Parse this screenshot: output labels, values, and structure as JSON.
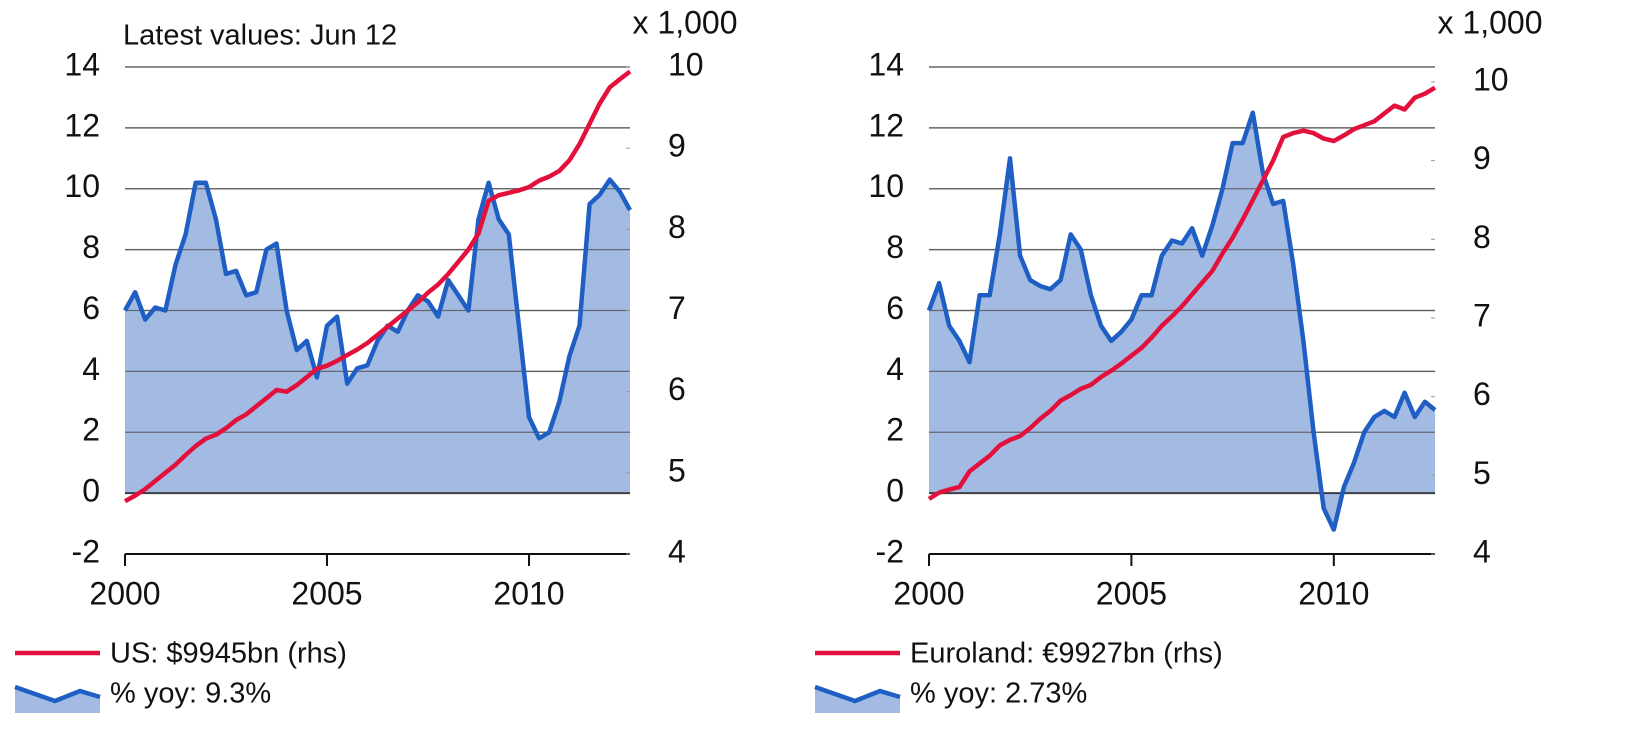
{
  "chart_data": [
    {
      "type": "line",
      "title": "Latest values: Jun 12",
      "y2label": "x 1,000",
      "x": [
        2000,
        2000.25,
        2000.5,
        2000.75,
        2001,
        2001.25,
        2001.5,
        2001.75,
        2002,
        2002.25,
        2002.5,
        2002.75,
        2003,
        2003.25,
        2003.5,
        2003.75,
        2004,
        2004.25,
        2004.5,
        2004.75,
        2005,
        2005.25,
        2005.5,
        2005.75,
        2006,
        2006.25,
        2006.5,
        2006.75,
        2007,
        2007.25,
        2007.5,
        2007.75,
        2008,
        2008.25,
        2008.5,
        2008.75,
        2009,
        2009.25,
        2009.5,
        2009.75,
        2010,
        2010.25,
        2010.5,
        2010.75,
        2011,
        2011.25,
        2011.5,
        2011.75,
        2012,
        2012.25,
        2012.5
      ],
      "series": [
        {
          "name": "US: $9945bn (rhs)",
          "color": "#e3103c",
          "axis": "y2",
          "style": "line",
          "values": [
            4.65,
            4.72,
            4.8,
            4.9,
            5.0,
            5.1,
            5.22,
            5.33,
            5.42,
            5.47,
            5.55,
            5.65,
            5.72,
            5.82,
            5.92,
            6.02,
            6.0,
            6.08,
            6.18,
            6.28,
            6.32,
            6.38,
            6.45,
            6.52,
            6.6,
            6.7,
            6.8,
            6.9,
            7.0,
            7.1,
            7.22,
            7.32,
            7.45,
            7.6,
            7.75,
            7.95,
            8.35,
            8.42,
            8.45,
            8.48,
            8.52,
            8.6,
            8.65,
            8.72,
            8.85,
            9.05,
            9.3,
            9.55,
            9.75,
            9.85,
            9.945
          ]
        },
        {
          "name": "% yoy: 9.3%",
          "color": "#1f5fc4",
          "fill": "#a3bbe3",
          "style": "area",
          "values": [
            6.0,
            6.6,
            5.7,
            6.1,
            6.0,
            7.5,
            8.5,
            10.2,
            10.2,
            9.0,
            7.2,
            7.3,
            6.5,
            6.6,
            8.0,
            8.2,
            6.0,
            4.7,
            5.0,
            3.8,
            5.5,
            5.8,
            3.6,
            4.1,
            4.2,
            5.0,
            5.5,
            5.3,
            6.0,
            6.5,
            6.3,
            5.8,
            7.0,
            6.5,
            6.0,
            9.0,
            10.2,
            9.0,
            8.5,
            5.5,
            2.5,
            1.8,
            2.0,
            3.0,
            4.5,
            5.5,
            9.5,
            9.8,
            10.3,
            9.9,
            9.3
          ]
        }
      ],
      "xlim": [
        2000,
        2012.5
      ],
      "xticks": [
        2000,
        2005,
        2010
      ],
      "ylim": [
        -2,
        14
      ],
      "yticks": [
        -2,
        0,
        2,
        4,
        6,
        8,
        10,
        12,
        14
      ],
      "y2lim": [
        4,
        10
      ],
      "y2ticks": [
        4,
        5,
        6,
        7,
        8,
        9,
        10
      ],
      "grid": true
    },
    {
      "type": "line",
      "y2label": "x 1,000",
      "x": [
        2000,
        2000.25,
        2000.5,
        2000.75,
        2001,
        2001.25,
        2001.5,
        2001.75,
        2002,
        2002.25,
        2002.5,
        2002.75,
        2003,
        2003.25,
        2003.5,
        2003.75,
        2004,
        2004.25,
        2004.5,
        2004.75,
        2005,
        2005.25,
        2005.5,
        2005.75,
        2006,
        2006.25,
        2006.5,
        2006.75,
        2007,
        2007.25,
        2007.5,
        2007.75,
        2008,
        2008.25,
        2008.5,
        2008.75,
        2009,
        2009.25,
        2009.5,
        2009.75,
        2010,
        2010.25,
        2010.5,
        2010.75,
        2011,
        2011.25,
        2011.5,
        2011.75,
        2012,
        2012.25,
        2012.5
      ],
      "series": [
        {
          "name": "Euroland: €9927bn (rhs)",
          "color": "#e3103c",
          "axis": "y2",
          "style": "line",
          "values": [
            4.7,
            4.78,
            4.82,
            4.85,
            5.05,
            5.15,
            5.25,
            5.38,
            5.45,
            5.5,
            5.6,
            5.72,
            5.82,
            5.95,
            6.02,
            6.1,
            6.15,
            6.25,
            6.33,
            6.42,
            6.52,
            6.62,
            6.75,
            6.9,
            7.02,
            7.15,
            7.3,
            7.45,
            7.6,
            7.82,
            8.02,
            8.25,
            8.5,
            8.75,
            9.0,
            9.3,
            9.35,
            9.38,
            9.35,
            9.28,
            9.25,
            9.32,
            9.4,
            9.45,
            9.5,
            9.6,
            9.7,
            9.65,
            9.8,
            9.85,
            9.927
          ]
        },
        {
          "name": "% yoy: 2.73%",
          "color": "#1f5fc4",
          "fill": "#a3bbe3",
          "style": "area",
          "values": [
            6.0,
            6.9,
            5.5,
            5.0,
            4.3,
            6.5,
            6.5,
            8.5,
            11.0,
            7.8,
            7.0,
            6.8,
            6.7,
            7.0,
            8.5,
            8.0,
            6.5,
            5.5,
            5.0,
            5.3,
            5.7,
            6.5,
            6.5,
            7.8,
            8.3,
            8.2,
            8.7,
            7.8,
            8.8,
            10.0,
            11.5,
            11.5,
            12.5,
            10.5,
            9.5,
            9.6,
            7.5,
            5.0,
            2.0,
            -0.5,
            -1.2,
            0.2,
            1.0,
            2.0,
            2.5,
            2.7,
            2.5,
            3.3,
            2.5,
            3.0,
            2.73
          ]
        }
      ],
      "xlim": [
        2000,
        2012.5
      ],
      "xticks": [
        2000,
        2005,
        2010
      ],
      "ylim": [
        -2,
        14
      ],
      "yticks": [
        -2,
        0,
        2,
        4,
        6,
        8,
        10,
        12,
        14
      ],
      "y2lim": [
        4,
        10.19
      ],
      "y2ticks": [
        4,
        5,
        6,
        7,
        8,
        9,
        10
      ],
      "grid": true
    }
  ]
}
